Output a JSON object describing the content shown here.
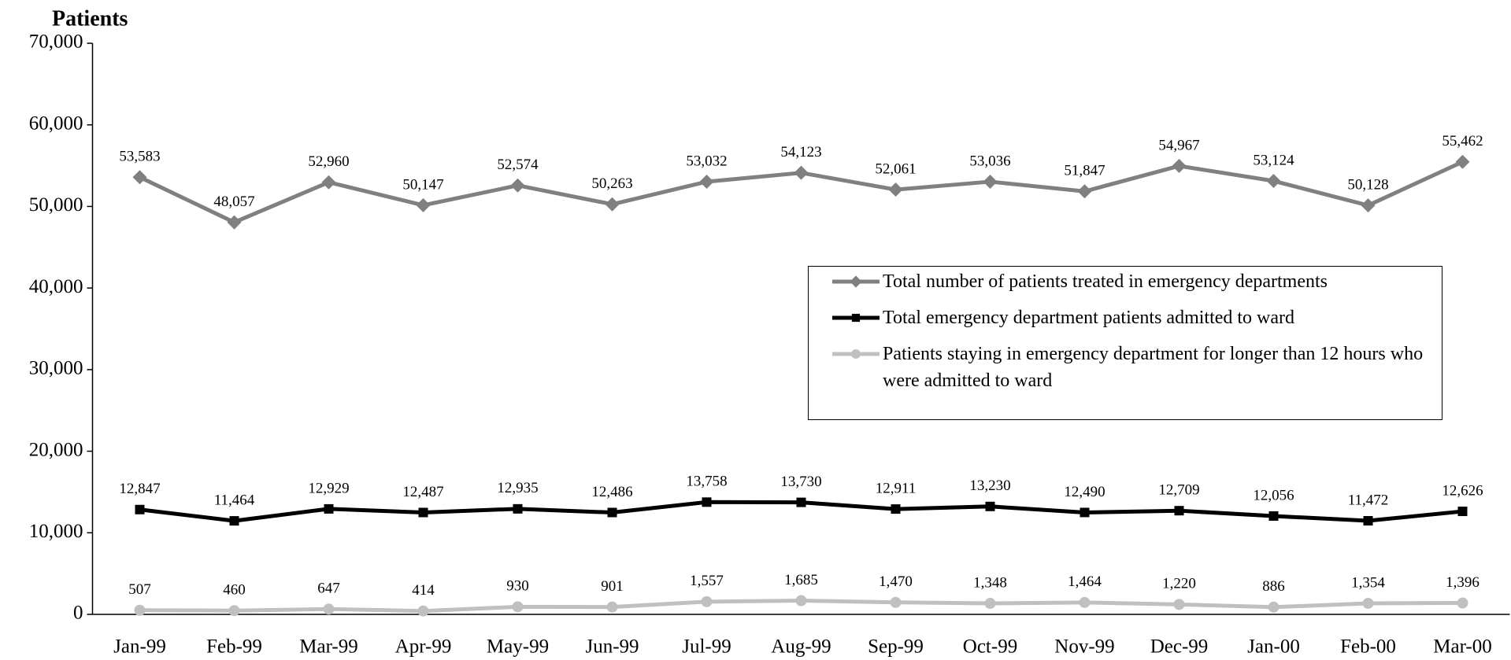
{
  "chart_data": {
    "type": "line",
    "y_label": "Patients",
    "categories": [
      "Jan-99",
      "Feb-99",
      "Mar-99",
      "Apr-99",
      "May-99",
      "Jun-99",
      "Jul-99",
      "Aug-99",
      "Sep-99",
      "Oct-99",
      "Nov-99",
      "Dec-99",
      "Jan-00",
      "Feb-00",
      "Mar-00"
    ],
    "ylim": [
      0,
      70000
    ],
    "yticks": [
      0,
      {
        "value": 10000,
        "label": "10,000"
      },
      {
        "value": 20000,
        "label": "20,000"
      },
      {
        "value": 30000,
        "label": "30,000"
      },
      {
        "value": 40000,
        "label": "40,000"
      },
      {
        "value": 50000,
        "label": "50,000"
      },
      {
        "value": 60000,
        "label": "60,000"
      },
      {
        "value": 70000,
        "label": "70,000"
      }
    ],
    "legend": "right",
    "series": [
      {
        "name": "Total number of patients treated in emergency departments",
        "color": "#808080",
        "marker": "diamond",
        "values": [
          53583,
          48057,
          52960,
          50147,
          52574,
          50263,
          53032,
          54123,
          52061,
          53036,
          51847,
          54967,
          53124,
          50128,
          55462
        ],
        "value_labels": [
          "53,583",
          "48,057",
          "52,960",
          "50,147",
          "52,574",
          "50,263",
          "53,032",
          "54,123",
          "52,061",
          "53,036",
          "51,847",
          "54,967",
          "53,124",
          "50,128",
          "55,462"
        ]
      },
      {
        "name": "Total emergency department patients admitted to ward",
        "color": "#000000",
        "marker": "square",
        "values": [
          12847,
          11464,
          12929,
          12487,
          12935,
          12486,
          13758,
          13730,
          12911,
          13230,
          12490,
          12709,
          12056,
          11472,
          12626
        ],
        "value_labels": [
          "12,847",
          "11,464",
          "12,929",
          "12,487",
          "12,935",
          "12,486",
          "13,758",
          "13,730",
          "12,911",
          "13,230",
          "12,490",
          "12,709",
          "12,056",
          "11,472",
          "12,626"
        ]
      },
      {
        "name": "Patients staying in emergency department for longer than 12 hours who were admitted to ward",
        "color": "#c0c0c0",
        "marker": "circle",
        "values": [
          507,
          460,
          647,
          414,
          930,
          901,
          1557,
          1685,
          1470,
          1348,
          1464,
          1220,
          886,
          1354,
          1396
        ],
        "value_labels": [
          "507",
          "460",
          "647",
          "414",
          "930",
          "901",
          "1,557",
          "1,685",
          "1,470",
          "1,348",
          "1,464",
          "1,220",
          "886",
          "1,354",
          "1,396"
        ]
      }
    ]
  }
}
